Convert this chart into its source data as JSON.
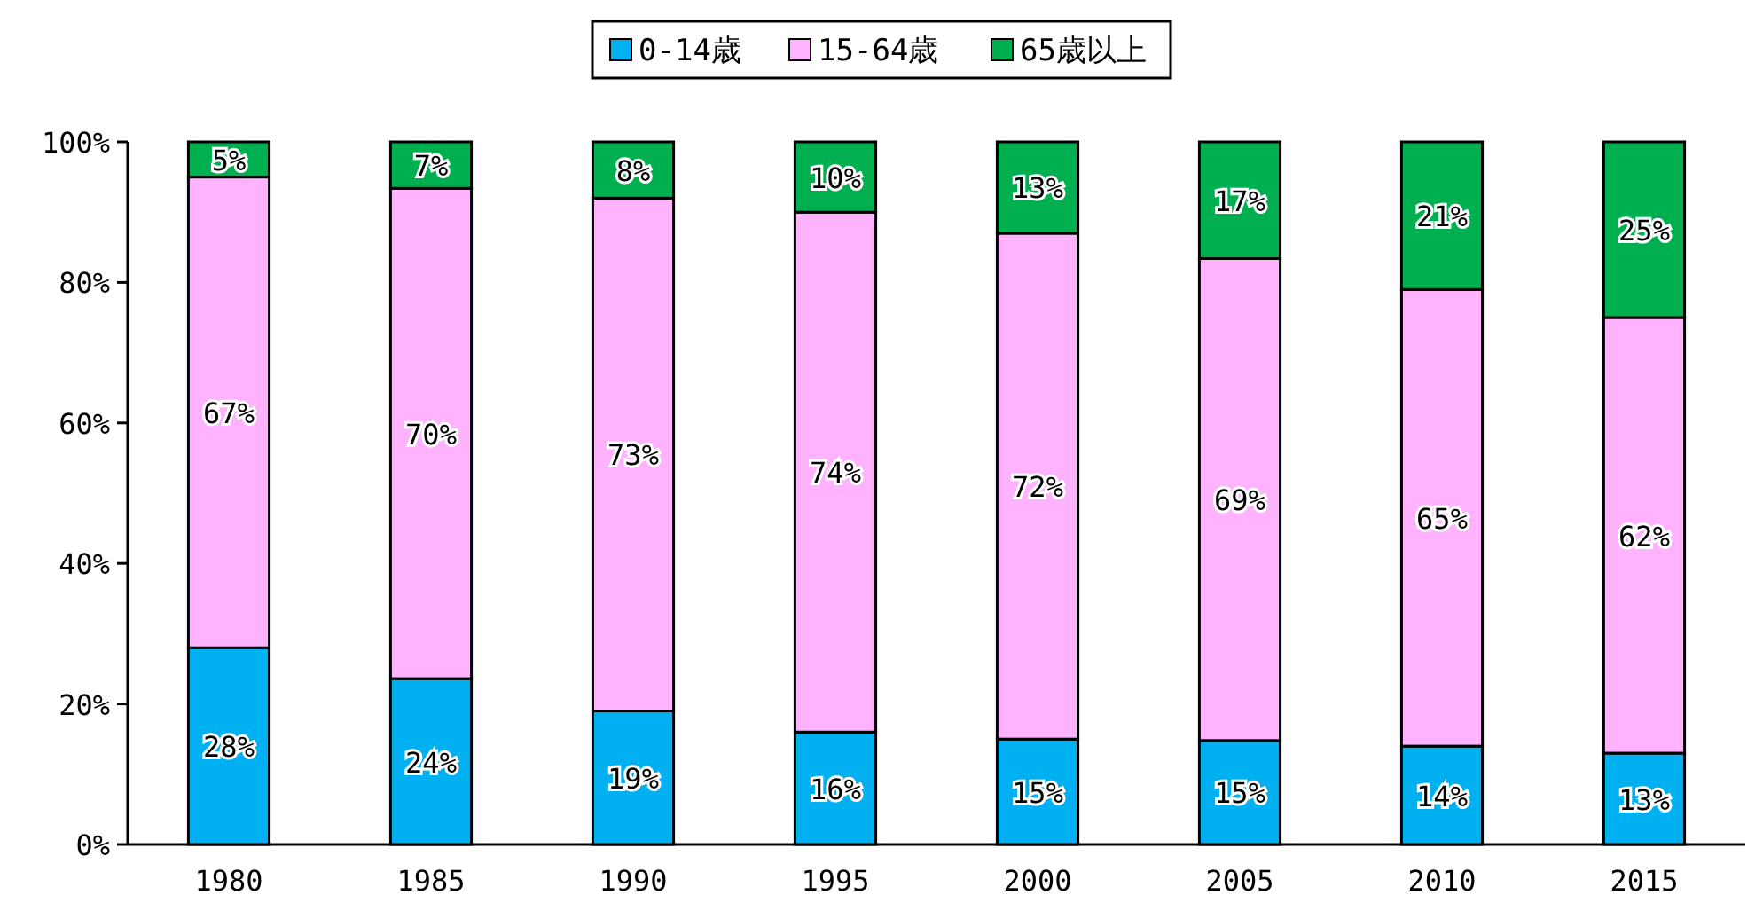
{
  "chart_data": {
    "type": "bar",
    "stacked": true,
    "legend": "top",
    "categories": [
      "1980",
      "1985",
      "1990",
      "1995",
      "2000",
      "2005",
      "2010",
      "2015"
    ],
    "ylim": [
      0,
      100
    ],
    "yticks": [
      {
        "value": 0,
        "label": "0%"
      },
      {
        "value": 20,
        "label": "20%"
      },
      {
        "value": 40,
        "label": "40%"
      },
      {
        "value": 60,
        "label": "60%"
      },
      {
        "value": 80,
        "label": "80%"
      },
      {
        "value": 100,
        "label": "100%"
      }
    ],
    "series": [
      {
        "name": "0-14歳",
        "color": "#00b0f0",
        "values": [
          28,
          23.6,
          19,
          16,
          15,
          14.8,
          14,
          13
        ],
        "value_labels": [
          "28%",
          "24%",
          "19%",
          "16%",
          "15%",
          "15%",
          "14%",
          "13%"
        ]
      },
      {
        "name": "15-64歳",
        "color": "#ffb3ff",
        "values": [
          67,
          69.8,
          73,
          74,
          72,
          68.6,
          65,
          62
        ],
        "value_labels": [
          "67%",
          "70%",
          "73%",
          "74%",
          "72%",
          "69%",
          "65%",
          "62%"
        ]
      },
      {
        "name": "65歳以上",
        "color": "#00b050",
        "values": [
          5,
          6.6,
          8,
          10,
          13,
          16.6,
          21,
          25
        ],
        "value_labels": [
          "5%",
          "7%",
          "8%",
          "10%",
          "13%",
          "17%",
          "21%",
          "25%"
        ]
      }
    ]
  }
}
